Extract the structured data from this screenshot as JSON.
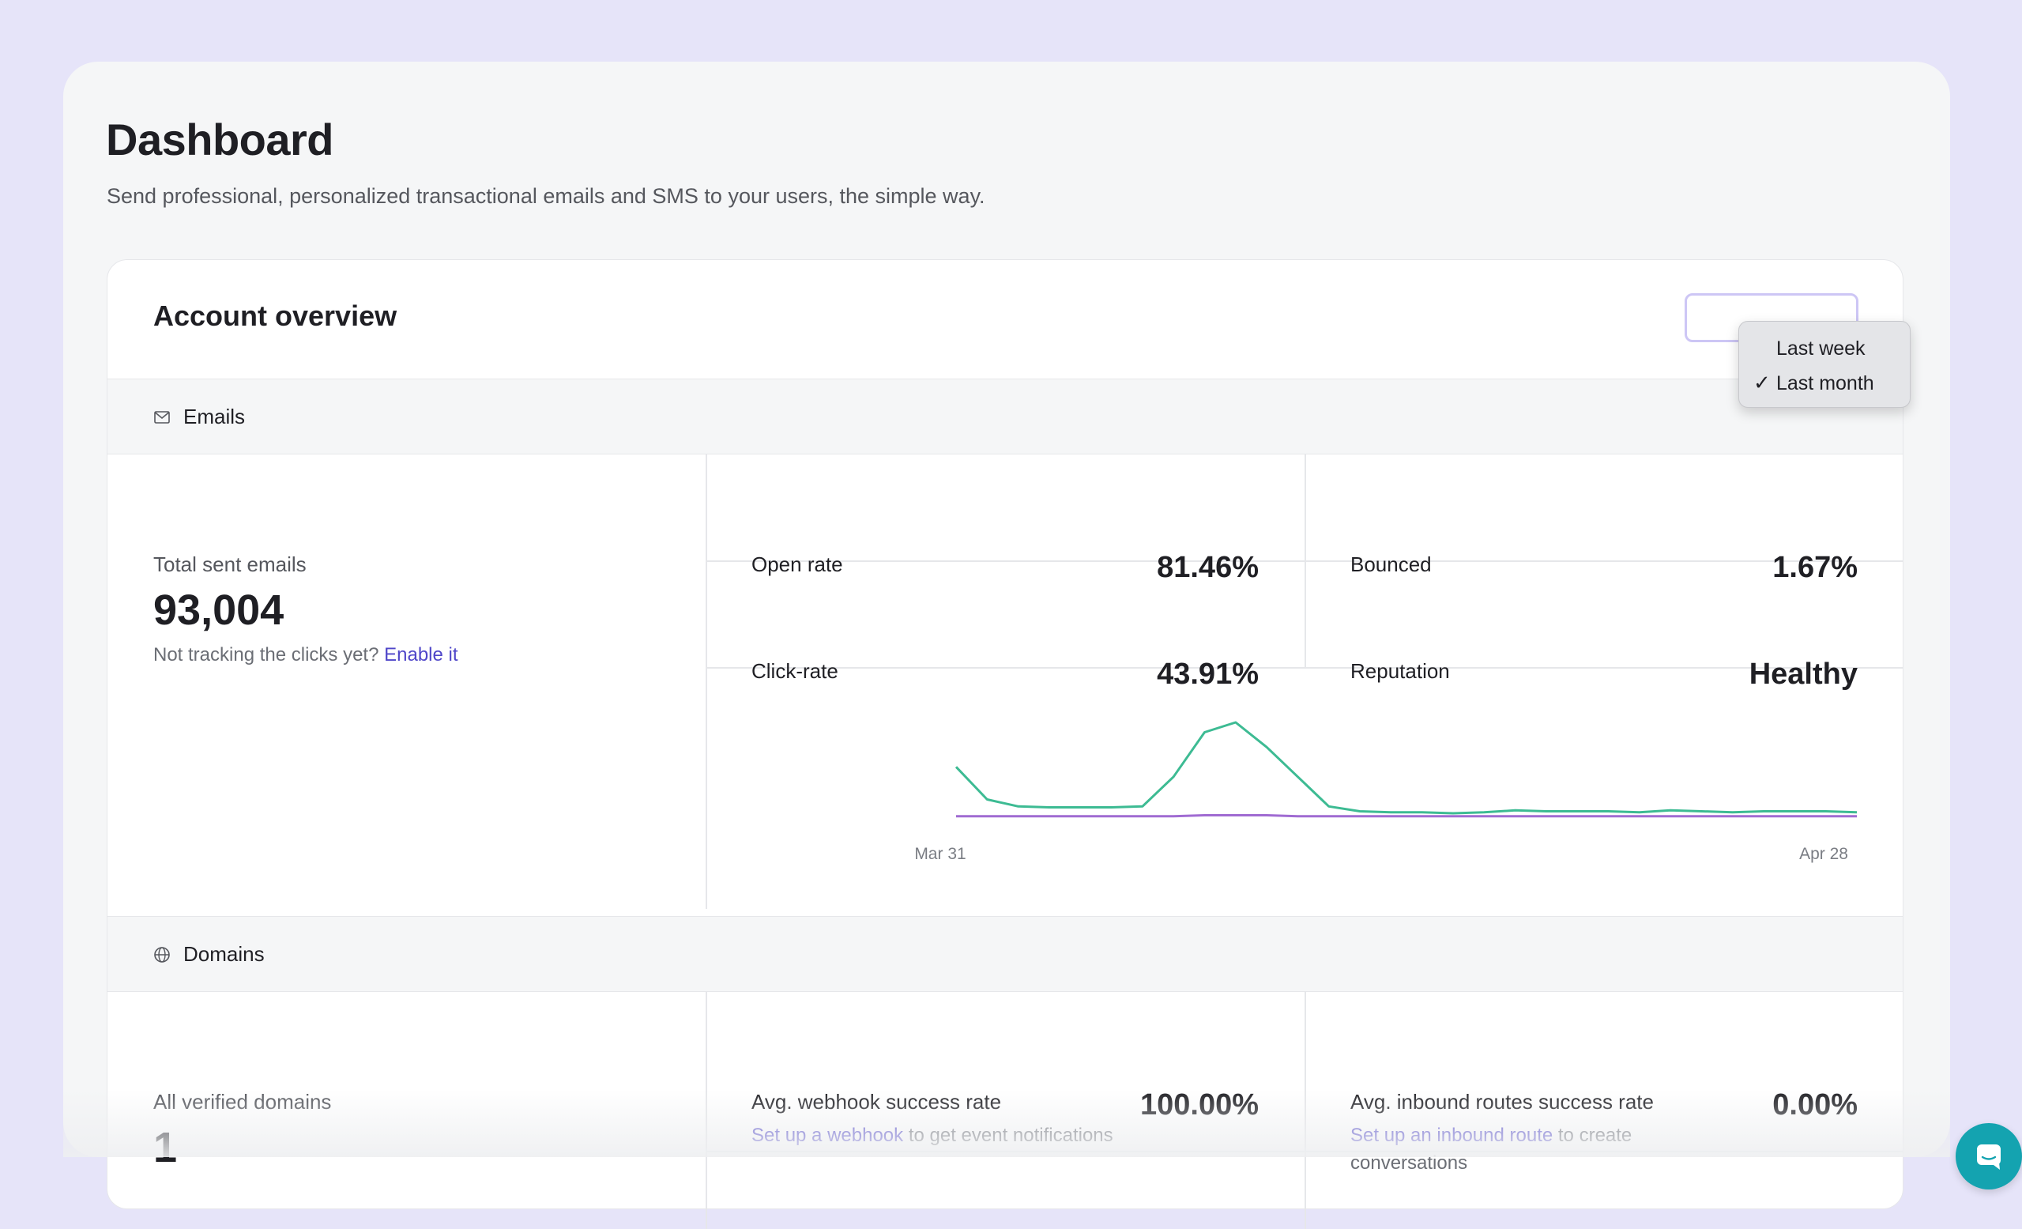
{
  "page": {
    "title": "Dashboard",
    "subtitle": "Send professional, personalized transactional emails and SMS to your users, the simple way."
  },
  "overview": {
    "title": "Account overview",
    "period_options": [
      "Last week",
      "Last month"
    ],
    "selected_period": "Last month"
  },
  "emails": {
    "section_label": "Emails",
    "section_icon": "mail-icon",
    "total_label": "Total sent emails",
    "total_value": "93,004",
    "tracking_note": "Not tracking the clicks yet?",
    "tracking_link": "Enable it",
    "metrics": {
      "open_rate": {
        "label": "Open rate",
        "value": "81.46%"
      },
      "bounced": {
        "label": "Bounced",
        "value": "1.67%"
      },
      "click_rate": {
        "label": "Click-rate",
        "value": "43.91%"
      },
      "reputation": {
        "label": "Reputation",
        "value": "Healthy"
      }
    }
  },
  "domains": {
    "section_label": "Domains",
    "section_icon": "globe-icon",
    "verified_label": "All verified domains",
    "verified_value": "1",
    "webhook": {
      "label": "Avg. webhook success rate",
      "value": "100.00%",
      "link": "Set up a webhook",
      "note": "to get event notifications"
    },
    "inbound": {
      "label": "Avg. inbound routes success rate",
      "value": "0.00%",
      "link": "Set up an inbound route",
      "note": "to create conversations"
    }
  },
  "chart_data": {
    "type": "line",
    "x_tick_labels": [
      "Mar 31",
      "Apr 28"
    ],
    "grid": false,
    "legend": "none",
    "series": [
      {
        "color": "#3dbb93",
        "values": [
          0.55,
          0.22,
          0.15,
          0.14,
          0.14,
          0.14,
          0.15,
          0.45,
          0.9,
          1.0,
          0.75,
          0.45,
          0.15,
          0.1,
          0.09,
          0.09,
          0.08,
          0.09,
          0.11,
          0.1,
          0.1,
          0.1,
          0.09,
          0.11,
          0.1,
          0.09,
          0.1,
          0.1,
          0.1,
          0.09
        ]
      },
      {
        "color": "#a06bd2",
        "values": [
          0.05,
          0.05,
          0.05,
          0.05,
          0.05,
          0.05,
          0.05,
          0.05,
          0.06,
          0.06,
          0.06,
          0.05,
          0.05,
          0.05,
          0.05,
          0.05,
          0.05,
          0.05,
          0.05,
          0.05,
          0.05,
          0.05,
          0.05,
          0.05,
          0.05,
          0.05,
          0.05,
          0.05,
          0.05,
          0.05
        ]
      }
    ]
  },
  "colors": {
    "background": "#e6e4f9",
    "link": "#4f46c9",
    "chat_button": "#14a3b0"
  },
  "chat": {
    "icon": "chat-icon"
  }
}
